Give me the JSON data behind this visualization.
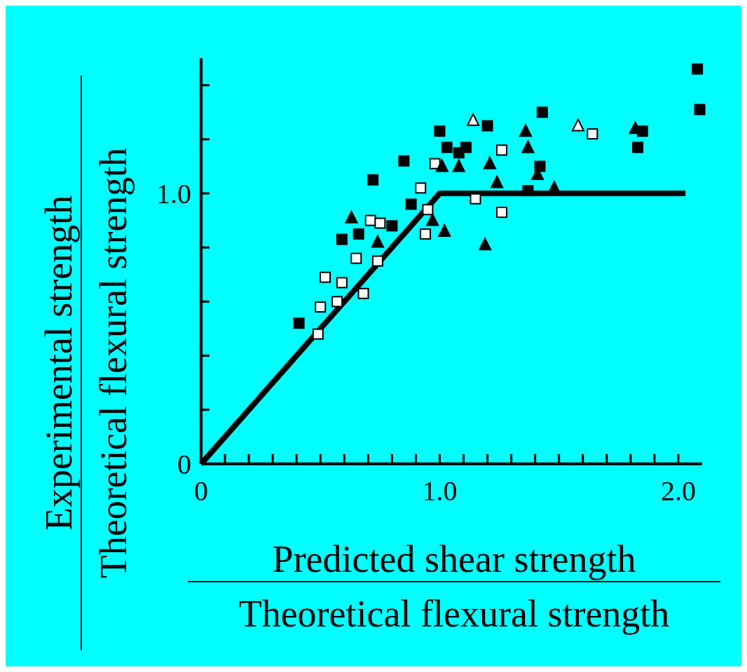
{
  "chart_data": {
    "type": "scatter",
    "xlabel": "Predicted shear strength\nTheoretical flexural strength",
    "ylabel": "Experimental strength\nTheoretical flexural strength",
    "xlim": [
      0,
      2.1
    ],
    "ylim": [
      0,
      1.5
    ],
    "xticks": [
      0,
      {
        "value": 0.1,
        "label": null
      },
      {
        "value": 0.2,
        "label": null
      },
      {
        "value": 0.3,
        "label": null
      },
      {
        "value": 0.4,
        "label": null
      },
      {
        "value": 0.5,
        "label": null
      },
      {
        "value": 0.6,
        "label": null
      },
      {
        "value": 0.7,
        "label": null
      },
      {
        "value": 0.8,
        "label": null
      },
      {
        "value": 0.9,
        "label": null
      },
      {
        "value": 1,
        "label": "1.0"
      },
      {
        "value": 1.1,
        "label": null
      },
      {
        "value": 1.2,
        "label": null
      },
      {
        "value": 1.3,
        "label": null
      },
      {
        "value": 1.4,
        "label": null
      },
      {
        "value": 1.5,
        "label": null
      },
      {
        "value": 1.6,
        "label": null
      },
      {
        "value": 1.7,
        "label": null
      },
      {
        "value": 1.8,
        "label": null
      },
      {
        "value": 1.9,
        "label": null
      },
      {
        "value": 2,
        "label": "2.0"
      }
    ],
    "yticks": [
      0,
      {
        "value": 0.2,
        "label": null
      },
      {
        "value": 0.4,
        "label": null
      },
      {
        "value": 0.6,
        "label": null
      },
      {
        "value": 0.8,
        "label": null
      },
      {
        "value": 1,
        "label": "1.0"
      },
      {
        "value": 1.2,
        "label": null
      },
      {
        "value": 1.4,
        "label": null
      }
    ],
    "grid": false,
    "series": [
      {
        "type": "line",
        "color": "#000000",
        "marker": "none",
        "line_style": "solid",
        "x": [
          0,
          1,
          2.03
        ],
        "values": [
          0,
          1,
          1
        ]
      },
      {
        "color": "#000000",
        "marker": "square",
        "x": [
          0.41,
          0.59,
          0.72,
          0.85,
          1.0,
          1.03,
          1.08,
          1.2,
          1.43,
          1.37,
          1.83,
          1.85,
          2.08,
          2.09,
          0.66,
          0.8,
          0.88,
          1.42,
          1.11
        ],
        "values": [
          0.52,
          0.83,
          1.05,
          1.12,
          1.23,
          1.17,
          1.15,
          1.25,
          1.3,
          1.01,
          1.17,
          1.23,
          1.46,
          1.31,
          0.85,
          0.88,
          0.96,
          1.1,
          1.17
        ]
      },
      {
        "color": "#ffffff",
        "marker": "square",
        "x": [
          0.49,
          0.52,
          0.5,
          0.59,
          0.65,
          0.68,
          0.71,
          0.75,
          0.74,
          0.98,
          0.92,
          0.94,
          1.26,
          1.64,
          1.26,
          1.15,
          0.95,
          0.57
        ],
        "values": [
          0.48,
          0.69,
          0.58,
          0.67,
          0.76,
          0.63,
          0.9,
          0.89,
          0.75,
          1.11,
          1.02,
          0.85,
          1.16,
          1.22,
          0.93,
          0.98,
          0.94,
          0.6
        ]
      },
      {
        "color": "#000000",
        "marker": "triangle",
        "x": [
          0.63,
          1.01,
          1.08,
          1.19,
          1.21,
          1.02,
          0.97,
          1.37,
          1.36,
          1.24,
          1.48,
          1.41,
          1.82,
          0.74
        ],
        "values": [
          0.91,
          1.1,
          1.1,
          0.81,
          1.11,
          0.86,
          0.9,
          1.17,
          1.23,
          1.04,
          1.02,
          1.07,
          1.24,
          0.82
        ]
      },
      {
        "color": "#ffffff",
        "marker": "triangle",
        "x": [
          1.14,
          1.58
        ],
        "values": [
          1.27,
          1.25
        ]
      }
    ]
  }
}
